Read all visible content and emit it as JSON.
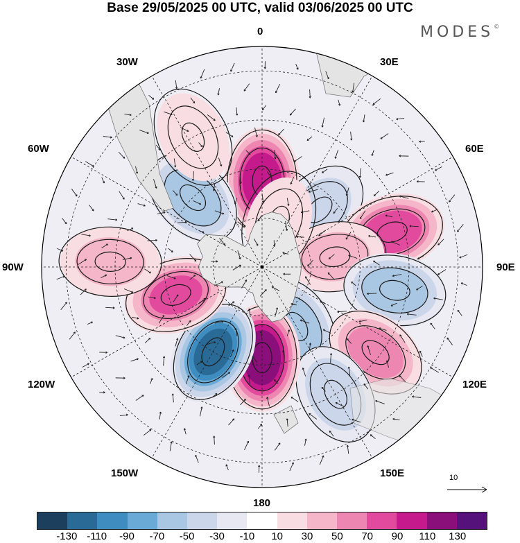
{
  "title": "Base 29/05/2025 00 UTC, valid 03/06/2025 00 UTC",
  "logo": "MODES",
  "logo_mark": "©",
  "lon_labels": {
    "n0": "0",
    "n30e": "30E",
    "n60e": "60E",
    "n90e": "90E",
    "n120e": "120E",
    "n150e": "150E",
    "n180": "180",
    "n150w": "150W",
    "n120w": "120W",
    "n90w": "90W",
    "n60w": "60W",
    "n30w": "30W"
  },
  "reference_vector": "10",
  "colorbar": {
    "colors": [
      "#1b3f5c",
      "#2a6a96",
      "#3f8cc0",
      "#6aaad6",
      "#a9c6e3",
      "#ccd6ea",
      "#e8e8f2",
      "#ffffff",
      "#f8dde2",
      "#f4b6c8",
      "#ee86b2",
      "#e24a9e",
      "#c41a8c",
      "#8a0f7a",
      "#55127a"
    ],
    "ticks": [
      "-130",
      "-110",
      "-90",
      "-70",
      "-50",
      "-30",
      "-10",
      "10",
      "30",
      "50",
      "70",
      "90",
      "110",
      "130"
    ]
  },
  "anomalies": [
    {
      "lon": 0,
      "colat": 35,
      "value": 105
    },
    {
      "lon": -45,
      "colat": 40,
      "value": -65
    },
    {
      "lon": 45,
      "colat": 33,
      "value": -45
    },
    {
      "lon": 75,
      "colat": 55,
      "value": 85
    },
    {
      "lon": 82,
      "colat": 30,
      "value": 40
    },
    {
      "lon": 100,
      "colat": 55,
      "value": -65
    },
    {
      "lon": 150,
      "colat": 28,
      "value": -65
    },
    {
      "lon": 127,
      "colat": 58,
      "value": 60
    },
    {
      "lon": 150,
      "colat": 60,
      "value": -50
    },
    {
      "lon": 180,
      "colat": 37,
      "value": 125
    },
    {
      "lon": -150,
      "colat": 40,
      "value": -115
    },
    {
      "lon": -108,
      "colat": 37,
      "value": 75
    },
    {
      "lon": -88,
      "colat": 62,
      "value": 40
    },
    {
      "lon": -28,
      "colat": 60,
      "value": 25
    },
    {
      "lon": 20,
      "colat": 20,
      "value": 20
    }
  ]
}
